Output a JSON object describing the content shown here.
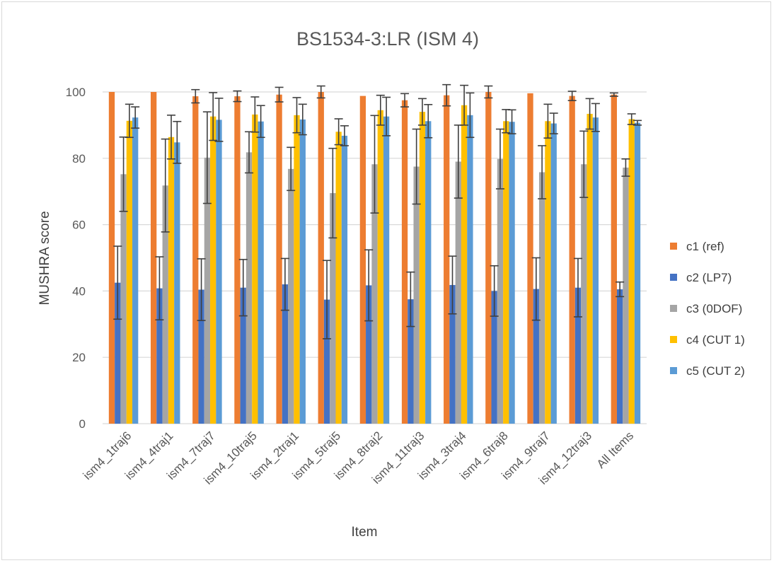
{
  "chart_data": {
    "type": "bar",
    "title": "BS1534-3:LR (ISM 4)",
    "xlabel": "Item",
    "ylabel": "MUSHRA score",
    "ylim": [
      0,
      100
    ],
    "yticks": [
      "0",
      "20",
      "40",
      "60",
      "80",
      "100"
    ],
    "grid": true,
    "legend_position": "right",
    "error_bars": true,
    "categories": [
      "ism4_1traj6",
      "ism4_4traj1",
      "ism4_7traj7",
      "ism4_10traj5",
      "ism4_2traj1",
      "ism4_5traj5",
      "ism4_8traj2",
      "ism4_11traj3",
      "ism4_3traj4",
      "ism4_6traj8",
      "ism4_9traj7",
      "ism4_12traj3",
      "All Items"
    ],
    "series": [
      {
        "name": "c1 (ref)",
        "color": "#ED7D31",
        "values": [
          100,
          100,
          98.7,
          98.7,
          99.2,
          100,
          98.8,
          97.5,
          99,
          100,
          99.6,
          98.8,
          99.2
        ],
        "errors": [
          0,
          0,
          2,
          1.6,
          2.2,
          1.8,
          0,
          2,
          3.2,
          1.8,
          0,
          1.4,
          0.5
        ]
      },
      {
        "name": "c2 (LP7)",
        "color": "#4472C4",
        "values": [
          42.5,
          40.8,
          40.4,
          41,
          42,
          37.4,
          41.7,
          37.5,
          41.8,
          40,
          40.6,
          41,
          40.5
        ],
        "errors": [
          11,
          9.5,
          9.3,
          8.5,
          7.8,
          11.8,
          10.7,
          8.2,
          8.7,
          7.6,
          9.4,
          8.8,
          2.2
        ]
      },
      {
        "name": "c3 (0DOF)",
        "color": "#A5A5A5",
        "values": [
          75.2,
          71.8,
          80.2,
          81.8,
          76.8,
          69.5,
          78.2,
          77.5,
          79,
          79.8,
          75.8,
          78.2,
          77.2
        ],
        "errors": [
          11.2,
          14,
          13.8,
          6.2,
          6.5,
          13.5,
          14.7,
          11.3,
          11,
          9,
          8,
          10,
          2.6
        ]
      },
      {
        "name": "c4 (CUT 1)",
        "color": "#FFC000",
        "values": [
          91.3,
          86.4,
          92.6,
          93.2,
          93,
          88,
          94.5,
          94,
          96,
          91.2,
          91.2,
          93.4,
          91.8
        ],
        "errors": [
          5,
          6.6,
          7.2,
          5.3,
          5.3,
          3.9,
          4.5,
          4,
          6,
          3.5,
          5.1,
          4.6,
          1.6
        ]
      },
      {
        "name": "c5 (CUT 2)",
        "color": "#5B9BD5",
        "values": [
          92.3,
          84.8,
          91.6,
          91.1,
          91.7,
          86.8,
          92.6,
          91.2,
          93,
          91,
          90.5,
          92.3,
          90.7
        ],
        "errors": [
          3.2,
          6.3,
          6.5,
          4.8,
          4.6,
          3,
          5.8,
          5,
          6.7,
          3.6,
          3.1,
          4.2,
          0.7
        ]
      }
    ]
  }
}
